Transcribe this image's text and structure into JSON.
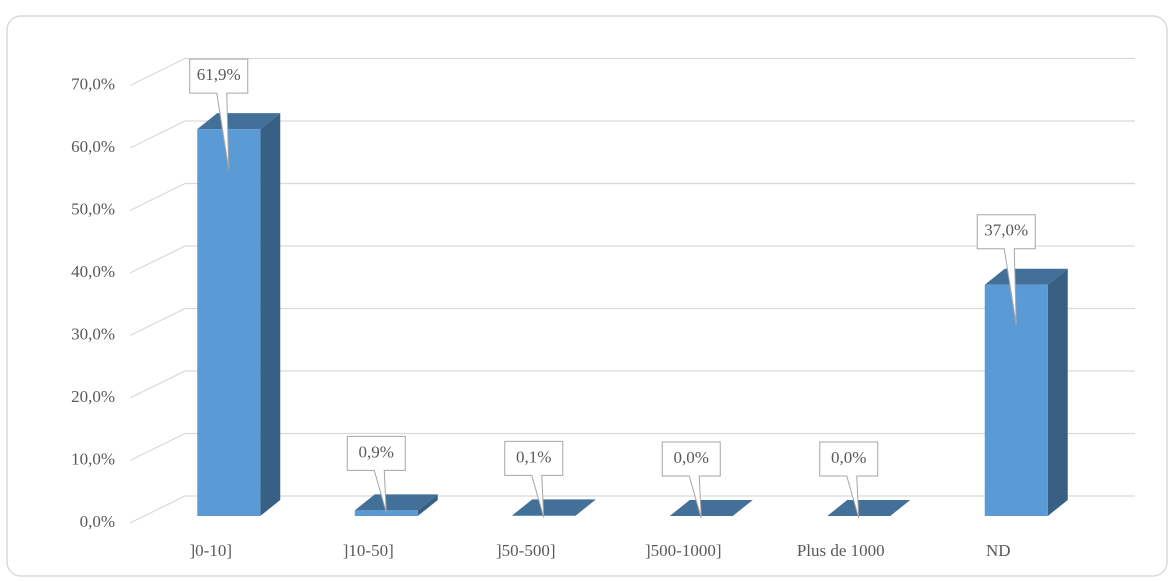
{
  "chart_data": {
    "type": "bar3d",
    "categories": [
      "]0-10]",
      "]10-50]",
      "]50-500]",
      "]500-1000]",
      "Plus de 1000",
      "ND"
    ],
    "values": [
      61.9,
      0.9,
      0.1,
      0.0,
      0.0,
      37.0
    ],
    "value_labels": [
      "61,9%",
      "0,9%",
      "0,1%",
      "0,0%",
      "0,0%",
      "37,0%"
    ],
    "color": "#5b9bd5",
    "ylim": [
      0,
      70
    ],
    "yticks": [
      {
        "value": 0,
        "label": "0,0%"
      },
      {
        "value": 10,
        "label": "10,0%"
      },
      {
        "value": 20,
        "label": "20,0%"
      },
      {
        "value": 30,
        "label": "30,0%"
      },
      {
        "value": 40,
        "label": "40,0%"
      },
      {
        "value": 50,
        "label": "50,0%"
      },
      {
        "value": 60,
        "label": "60,0%"
      },
      {
        "value": 70,
        "label": "70,0%"
      }
    ],
    "grid": true
  }
}
